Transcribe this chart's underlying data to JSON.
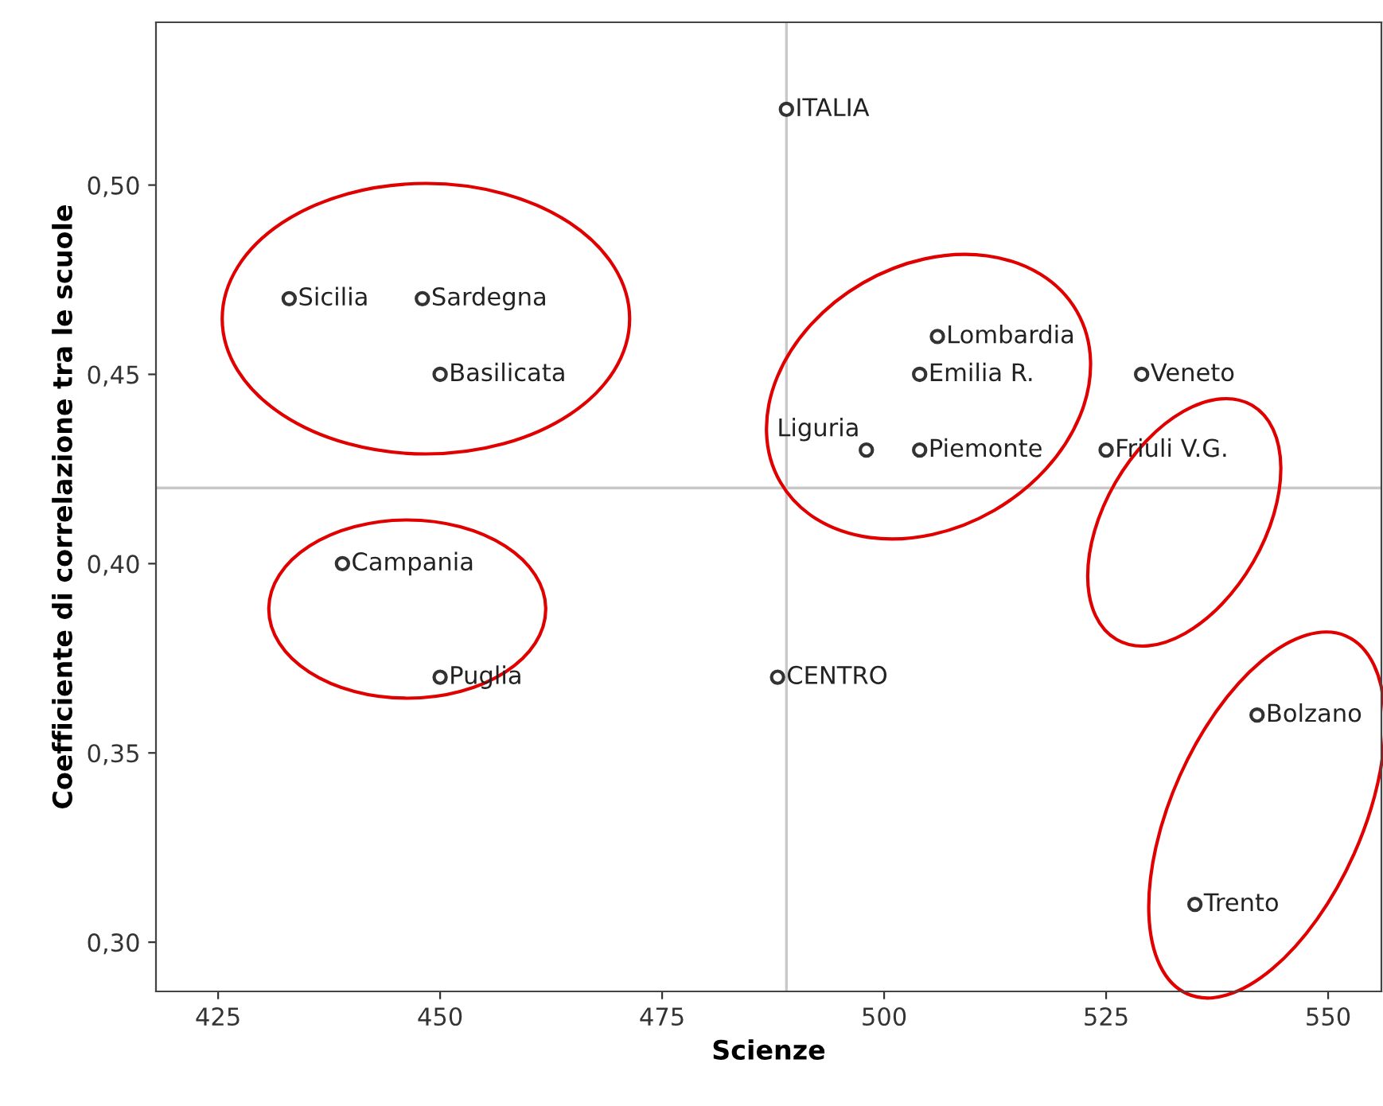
{
  "chart_data": {
    "type": "scatter",
    "xlabel": "Scienze",
    "ylabel": "Coefficiente di correlazione tra le scuole",
    "xlim": [
      418,
      556
    ],
    "ylim": [
      0.287,
      0.543
    ],
    "xticks": [
      425,
      450,
      475,
      500,
      525,
      550
    ],
    "yticks": [
      {
        "value": 0.3,
        "label": "0,30"
      },
      {
        "value": 0.35,
        "label": "0,35"
      },
      {
        "value": 0.4,
        "label": "0,40"
      },
      {
        "value": 0.45,
        "label": "0,45"
      },
      {
        "value": 0.5,
        "label": "0,50"
      }
    ],
    "grid": false,
    "legend": false,
    "marker": "circle",
    "series": [
      {
        "color": "#333333",
        "x": [
          489,
          433,
          448,
          450,
          504,
          506,
          529,
          498,
          504,
          525,
          439,
          450,
          488,
          542,
          535
        ],
        "values": [
          0.52,
          0.47,
          0.47,
          0.45,
          0.45,
          0.46,
          0.45,
          0.43,
          0.43,
          0.43,
          0.4,
          0.37,
          0.37,
          0.36,
          0.31
        ]
      }
    ],
    "ref_lines": [
      {
        "axis": "x",
        "value": 489,
        "color": "#c8c8c8"
      },
      {
        "axis": "y",
        "value": 0.42,
        "color": "#c8c8c8"
      }
    ],
    "annotations": [
      {
        "text": "ITALIA",
        "x": 489,
        "y": 0.52
      },
      {
        "text": "Sicilia",
        "x": 433,
        "y": 0.47
      },
      {
        "text": "Sardegna",
        "x": 448,
        "y": 0.47
      },
      {
        "text": "Basilicata",
        "x": 450,
        "y": 0.45
      },
      {
        "text": "Emilia R.",
        "x": 504,
        "y": 0.45
      },
      {
        "text": "Lombardia",
        "x": 506,
        "y": 0.46
      },
      {
        "text": "Veneto",
        "x": 529,
        "y": 0.45
      },
      {
        "text": "Liguria",
        "x": 498,
        "y": 0.43
      },
      {
        "text": "Piemonte",
        "x": 504,
        "y": 0.43
      },
      {
        "text": "Friuli V.G.",
        "x": 525,
        "y": 0.43
      },
      {
        "text": "Campania",
        "x": 439,
        "y": 0.4
      },
      {
        "text": "Puglia",
        "x": 450,
        "y": 0.37
      },
      {
        "text": "CENTRO",
        "x": 488,
        "y": 0.37
      },
      {
        "text": "Bolzano",
        "x": 542,
        "y": 0.36
      },
      {
        "text": "Trento",
        "x": 535,
        "y": 0.31
      }
    ]
  }
}
